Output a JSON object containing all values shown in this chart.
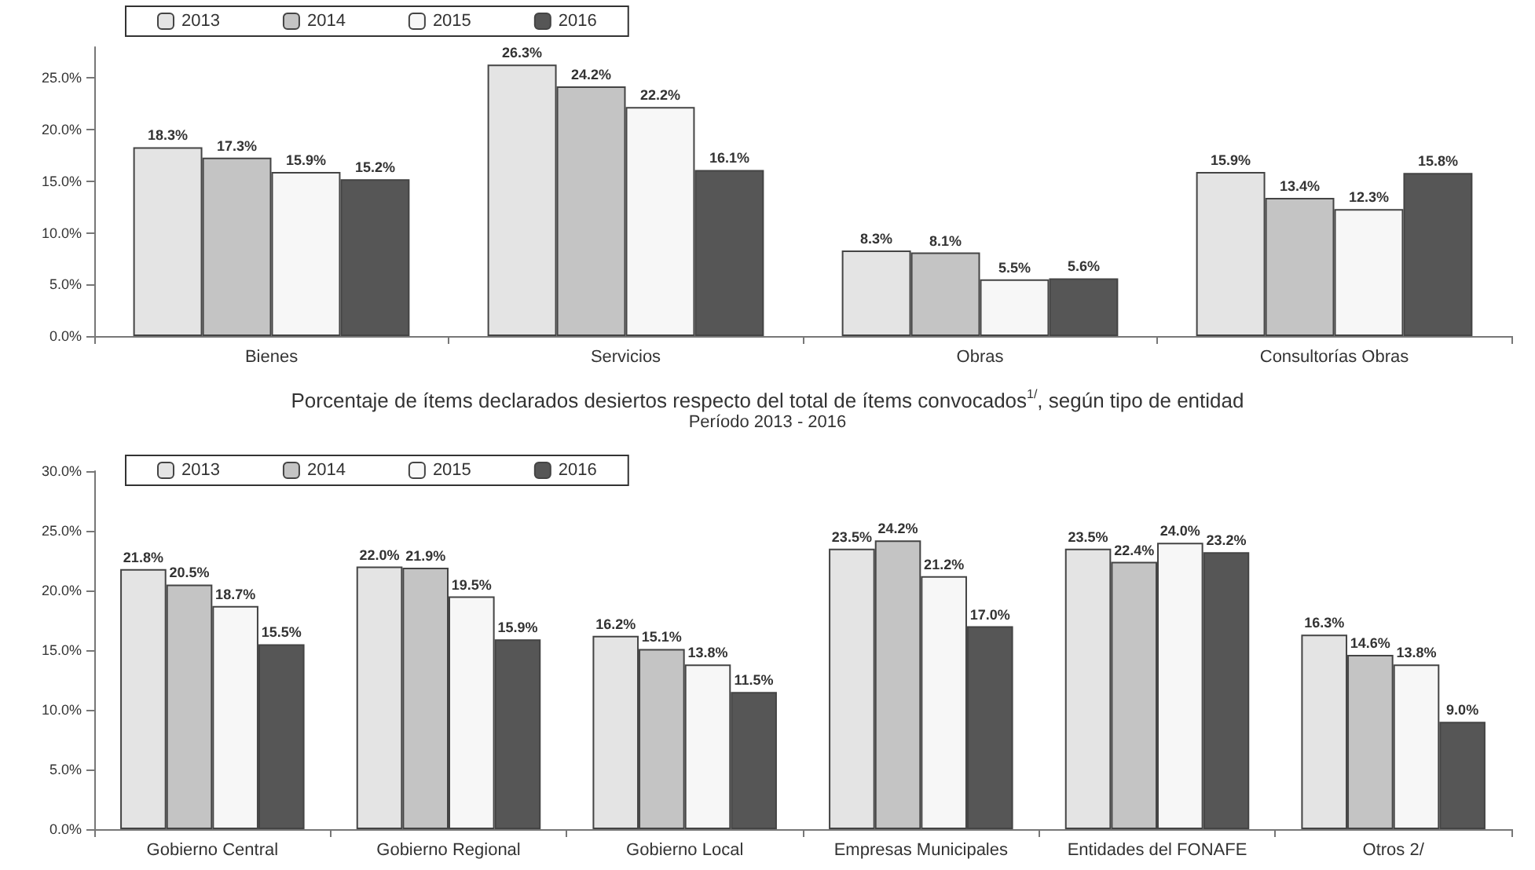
{
  "chart_data": [
    {
      "type": "bar",
      "categories": [
        "Bienes",
        "Servicios",
        "Obras",
        "Consultorías Obras"
      ],
      "series": [
        {
          "name": "2013",
          "color": "#e4e4e4",
          "values": [
            18.3,
            26.3,
            8.3,
            15.9
          ],
          "value_labels": [
            "18.3%",
            "26.3%",
            "8.3%",
            "15.9%"
          ]
        },
        {
          "name": "2014",
          "color": "#c4c4c4",
          "values": [
            17.3,
            24.2,
            8.1,
            13.4
          ],
          "value_labels": [
            "17.3%",
            "24.2%",
            "8.1%",
            "13.4%"
          ]
        },
        {
          "name": "2015",
          "color": "#f7f7f7",
          "values": [
            15.9,
            22.2,
            5.5,
            12.3
          ],
          "value_labels": [
            "15.9%",
            "22.2%",
            "5.5%",
            "12.3%"
          ]
        },
        {
          "name": "2016",
          "color": "#565656",
          "values": [
            15.2,
            16.1,
            5.6,
            15.8
          ],
          "value_labels": [
            "15.2%",
            "16.1%",
            "5.6%",
            "15.8%"
          ]
        }
      ],
      "ylim": [
        0,
        28
      ],
      "yticks": [
        {
          "value": 0,
          "label": "0.0%"
        },
        {
          "value": 5,
          "label": "5.0%"
        },
        {
          "value": 10,
          "label": "10.0%"
        },
        {
          "value": 15,
          "label": "15.0%"
        },
        {
          "value": 20,
          "label": "20.0%"
        },
        {
          "value": 25,
          "label": "25.0%"
        }
      ],
      "legend": "top left",
      "grid": false
    },
    {
      "type": "bar",
      "title": "Porcentaje de ítems declarados desiertos respecto del total de ítems convocados$^{1/}$, según tipo de entidad",
      "subtitle": "Período 2013 - 2016",
      "categories": [
        "Gobierno Central",
        "Gobierno Regional",
        "Gobierno Local",
        "Empresas Municipales",
        "Entidades del FONAFE",
        "Otros 2/"
      ],
      "series": [
        {
          "name": "2013",
          "color": "#e4e4e4",
          "values": [
            21.8,
            22.0,
            16.2,
            23.5,
            23.5,
            16.3
          ],
          "value_labels": [
            "21.8%",
            "22.0%",
            "16.2%",
            "23.5%",
            "23.5%",
            "16.3%"
          ]
        },
        {
          "name": "2014",
          "color": "#c4c4c4",
          "values": [
            20.5,
            21.9,
            15.1,
            24.2,
            22.4,
            14.6
          ],
          "value_labels": [
            "20.5%",
            "21.9%",
            "15.1%",
            "24.2%",
            "22.4%",
            "14.6%"
          ]
        },
        {
          "name": "2015",
          "color": "#f7f7f7",
          "values": [
            18.7,
            19.5,
            13.8,
            21.2,
            24.0,
            13.8
          ],
          "value_labels": [
            "18.7%",
            "19.5%",
            "13.8%",
            "21.2%",
            "24.0%",
            "13.8%"
          ]
        },
        {
          "name": "2016",
          "color": "#565656",
          "values": [
            15.5,
            15.9,
            11.5,
            17.0,
            23.2,
            9.0
          ],
          "value_labels": [
            "15.5%",
            "15.9%",
            "11.5%",
            "17.0%",
            "23.2%",
            "9.0%"
          ]
        }
      ],
      "ylim": [
        0,
        30
      ],
      "yticks": [
        {
          "value": 0,
          "label": "0.0%"
        },
        {
          "value": 5,
          "label": "5.0%"
        },
        {
          "value": 10,
          "label": "10.0%"
        },
        {
          "value": 15,
          "label": "15.0%"
        },
        {
          "value": 20,
          "label": "20.0%"
        },
        {
          "value": 25,
          "label": "25.0%"
        },
        {
          "value": 30,
          "label": "30.0%"
        }
      ],
      "legend": "top left",
      "grid": false
    }
  ]
}
